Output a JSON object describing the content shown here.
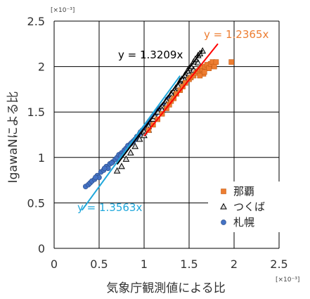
{
  "chart_data": {
    "type": "scatter",
    "xlabel": "気象庁観測値による比",
    "ylabel": "IgawaNによる比",
    "x_multiplier": "[×10⁻³]",
    "y_multiplier": "[×10⁻³]",
    "xlim": [
      0,
      2.5
    ],
    "ylim": [
      0,
      2.5
    ],
    "x_ticks": [
      "0",
      "0.5",
      "1",
      "1.5",
      "2",
      "2.5"
    ],
    "y_ticks": [
      "0",
      "0.5",
      "1",
      "1.5",
      "2",
      "2.5"
    ],
    "grid": true,
    "legend_position": "bottom-right",
    "series": [
      {
        "name": "那覇",
        "marker": "square",
        "color": "#ED7D31",
        "points": [
          [
            1.05,
            1.3
          ],
          [
            1.1,
            1.36
          ],
          [
            1.15,
            1.42
          ],
          [
            1.2,
            1.48
          ],
          [
            1.25,
            1.54
          ],
          [
            1.28,
            1.58
          ],
          [
            1.3,
            1.62
          ],
          [
            1.33,
            1.65
          ],
          [
            1.36,
            1.7
          ],
          [
            1.4,
            1.74
          ],
          [
            1.43,
            1.78
          ],
          [
            1.46,
            1.82
          ],
          [
            1.5,
            1.86
          ],
          [
            1.52,
            1.88
          ],
          [
            1.55,
            1.9
          ],
          [
            1.58,
            1.93
          ],
          [
            1.6,
            1.95
          ],
          [
            1.62,
            1.97
          ],
          [
            1.64,
            1.99
          ],
          [
            1.65,
            1.95
          ],
          [
            1.66,
            1.92
          ],
          [
            1.68,
            2.0
          ],
          [
            1.7,
            2.02
          ],
          [
            1.72,
            1.98
          ],
          [
            1.74,
            2.03
          ],
          [
            1.76,
            2.05
          ],
          [
            1.78,
            2.0
          ],
          [
            1.8,
            2.05
          ],
          [
            1.62,
            1.9
          ],
          [
            1.67,
            1.94
          ],
          [
            1.97,
            2.05
          ]
        ]
      },
      {
        "name": "つくば",
        "marker": "triangle",
        "color": "#D9D9D9",
        "points": [
          [
            0.7,
            0.85
          ],
          [
            0.75,
            0.9
          ],
          [
            0.8,
            0.98
          ],
          [
            0.85,
            1.05
          ],
          [
            0.9,
            1.12
          ],
          [
            0.95,
            1.2
          ],
          [
            1.0,
            1.28
          ],
          [
            1.05,
            1.34
          ],
          [
            1.1,
            1.42
          ],
          [
            1.15,
            1.5
          ],
          [
            1.2,
            1.56
          ],
          [
            1.25,
            1.62
          ],
          [
            1.3,
            1.7
          ],
          [
            1.35,
            1.76
          ],
          [
            1.4,
            1.84
          ],
          [
            1.45,
            1.9
          ],
          [
            1.5,
            1.98
          ],
          [
            1.55,
            2.05
          ],
          [
            1.6,
            2.12
          ],
          [
            1.65,
            2.17
          ],
          [
            1.35,
            1.72
          ],
          [
            1.4,
            1.8
          ],
          [
            1.45,
            1.85
          ],
          [
            1.5,
            1.92
          ],
          [
            1.55,
            1.96
          ],
          [
            1.6,
            2.04
          ],
          [
            1.25,
            1.58
          ],
          [
            1.3,
            1.65
          ],
          [
            1.38,
            1.78
          ],
          [
            1.42,
            1.86
          ],
          [
            1.48,
            1.95
          ],
          [
            1.52,
            2.0
          ],
          [
            1.57,
            2.08
          ],
          [
            1.62,
            2.14
          ],
          [
            1.0,
            1.24
          ],
          [
            1.05,
            1.3
          ],
          [
            1.2,
            1.52
          ],
          [
            1.12,
            1.45
          ]
        ]
      },
      {
        "name": "札幌",
        "marker": "circle",
        "color": "#4472C4",
        "points": [
          [
            0.35,
            0.68
          ],
          [
            0.38,
            0.7
          ],
          [
            0.4,
            0.72
          ],
          [
            0.42,
            0.74
          ],
          [
            0.45,
            0.76
          ],
          [
            0.48,
            0.8
          ],
          [
            0.5,
            0.78
          ],
          [
            0.52,
            0.84
          ],
          [
            0.55,
            0.86
          ],
          [
            0.58,
            0.9
          ],
          [
            0.6,
            0.88
          ],
          [
            0.62,
            0.93
          ],
          [
            0.65,
            0.95
          ],
          [
            0.68,
            0.98
          ],
          [
            0.7,
            1.0
          ],
          [
            0.72,
            1.03
          ],
          [
            0.75,
            1.05
          ],
          [
            0.78,
            1.08
          ],
          [
            0.8,
            1.1
          ],
          [
            0.82,
            1.13
          ],
          [
            0.85,
            1.15
          ],
          [
            0.88,
            1.18
          ],
          [
            0.9,
            1.2
          ],
          [
            0.92,
            1.23
          ],
          [
            0.95,
            1.26
          ],
          [
            0.98,
            1.3
          ],
          [
            1.0,
            1.32
          ],
          [
            1.03,
            1.36
          ],
          [
            1.05,
            1.38
          ],
          [
            1.08,
            1.42
          ],
          [
            1.1,
            1.45
          ],
          [
            1.13,
            1.48
          ],
          [
            1.15,
            1.5
          ],
          [
            1.18,
            1.54
          ],
          [
            1.2,
            1.56
          ],
          [
            1.22,
            1.58
          ],
          [
            1.25,
            1.62
          ],
          [
            1.28,
            1.66
          ],
          [
            1.3,
            1.68
          ],
          [
            0.74,
            1.02
          ],
          [
            0.86,
            1.16
          ],
          [
            0.96,
            1.28
          ],
          [
            1.06,
            1.4
          ],
          [
            1.16,
            1.52
          ],
          [
            1.26,
            1.64
          ],
          [
            0.64,
            0.94
          ],
          [
            0.56,
            0.88
          ],
          [
            0.46,
            0.78
          ]
        ]
      }
    ],
    "regression_lines": [
      {
        "label": "y = 1.2365x",
        "slope": 1.2365,
        "x_range": [
          1.0,
          1.82
        ],
        "color": "#FF0000",
        "text_color": "#ED7D31"
      },
      {
        "label": "y = 1.3209x",
        "slope": 1.3209,
        "x_range": [
          0.7,
          1.65
        ],
        "color": "#000000",
        "text_color": "#000000"
      },
      {
        "label": "y = 1.3563x",
        "slope": 1.3563,
        "x_range": [
          0.31,
          1.4
        ],
        "color": "#1FA7DB",
        "text_color": "#1FA7DB"
      }
    ]
  }
}
